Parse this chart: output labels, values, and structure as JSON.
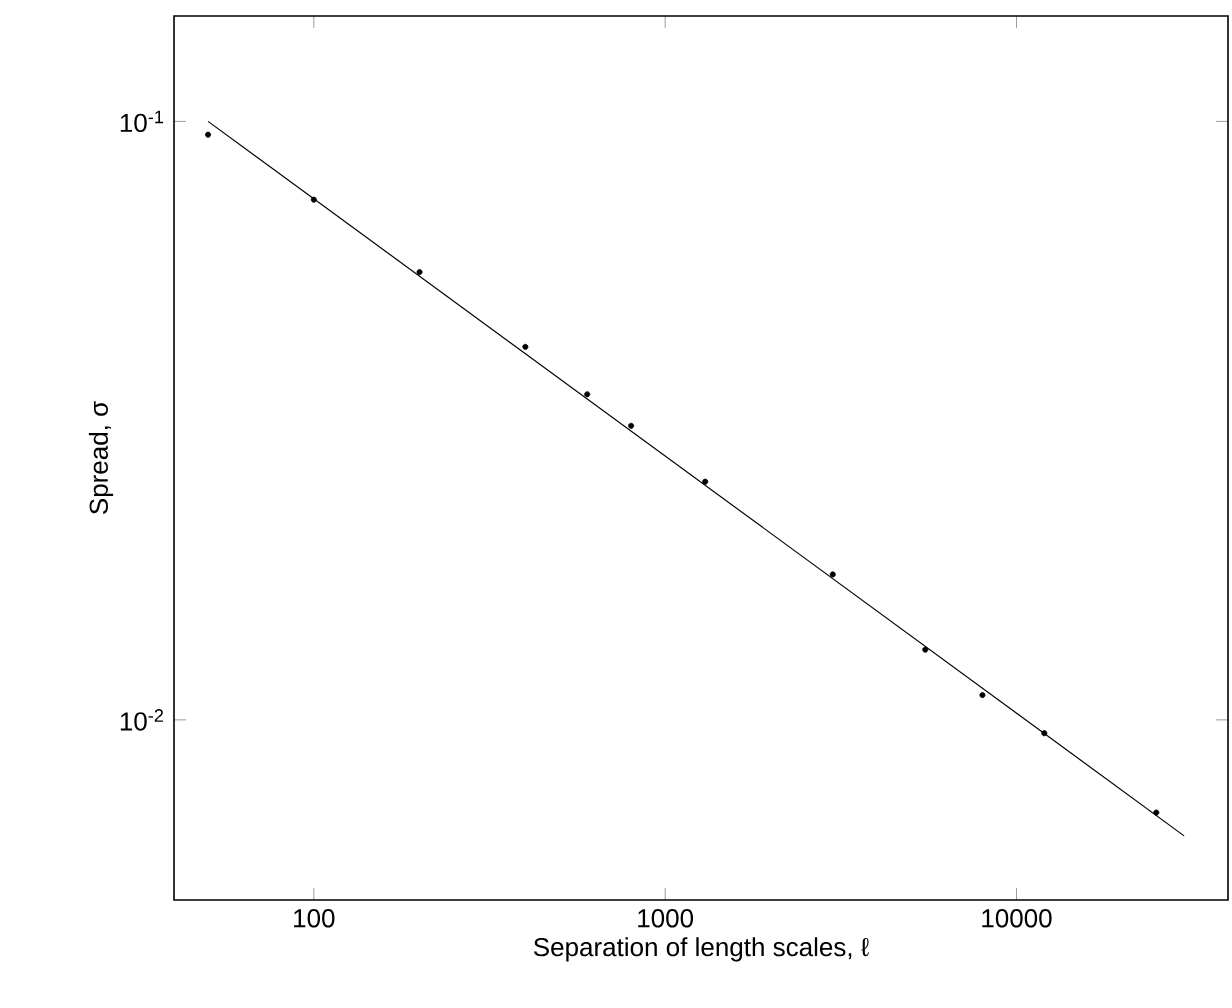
{
  "chart_data": {
    "type": "scatter",
    "xlabel": "Separation of length scales, ℓ",
    "ylabel": "Spread, σ",
    "log": "xy",
    "grid": false,
    "xlim": [
      40,
      40000
    ],
    "ylim": [
      0.005,
      0.15
    ],
    "xticks": [
      100,
      1000,
      10000
    ],
    "yticks": [
      {
        "value": 0.1,
        "label": "10$^{-1}$"
      },
      {
        "value": 0.01,
        "label": "10$^{-2}$"
      }
    ],
    "series": [
      {
        "color": "#000000",
        "marker": "circle",
        "x": [
          50,
          100,
          200,
          400,
          600,
          800,
          1300,
          3000,
          5500,
          8000,
          12000,
          25000
        ],
        "values": [
          0.095,
          0.074,
          0.056,
          0.042,
          0.035,
          0.031,
          0.025,
          0.0175,
          0.0131,
          0.011,
          0.0095,
          0.007
        ]
      },
      {
        "type": "line",
        "color": "#000000",
        "marker": "none",
        "line_style": "solid",
        "x": [
          50,
          30000
        ],
        "values": [
          0.1,
          0.0064
        ]
      }
    ]
  }
}
